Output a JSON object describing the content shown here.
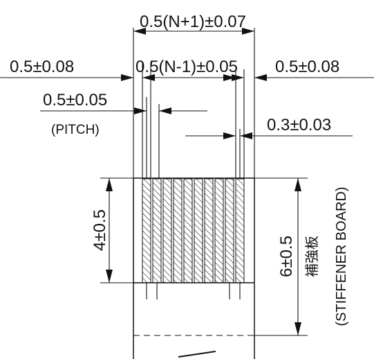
{
  "diagram": {
    "dim_top_width": "0.5(N+1)±0.07",
    "dim_left_margin": "0.5±0.08",
    "dim_inner_width": "0.5(N-1)±0.05",
    "dim_right_margin": "0.5±0.08",
    "dim_pitch": "0.5±0.05",
    "dim_pitch_label": "(PITCH)",
    "dim_lead_width": "0.3±0.03",
    "dim_lead_length": "4±0.5",
    "dim_stiffener_length": "6±0.5",
    "stiffener_label_cjk": "補強板",
    "stiffener_label_en": "(STIFFENER BOARD)"
  }
}
